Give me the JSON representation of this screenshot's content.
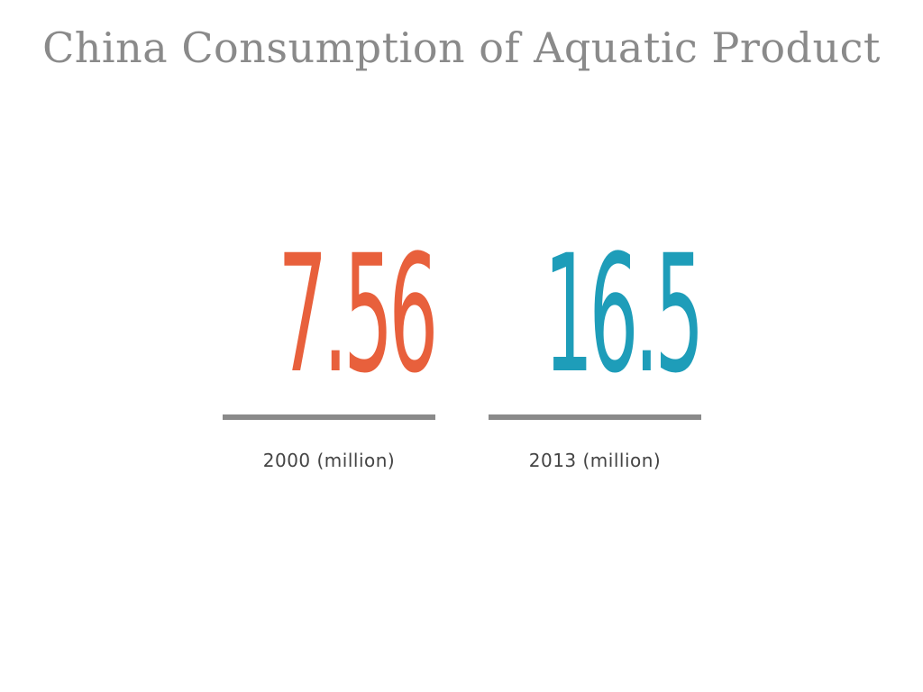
{
  "chart_data": {
    "type": "table",
    "title": "China Consumption of Aquatic Product",
    "stats": [
      {
        "value": "7.56",
        "label": "2000 (million)",
        "color": "#e8603c"
      },
      {
        "value": "16.5",
        "label": "2013 (million)",
        "color": "#1e9db9"
      }
    ]
  },
  "colors": {
    "title": "#8a8a8a",
    "rule": "#8a8a8a",
    "label": "#444444",
    "background": "#ffffff"
  }
}
